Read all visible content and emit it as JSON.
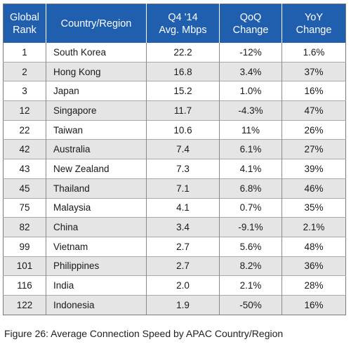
{
  "chart_data": {
    "type": "table",
    "columns": [
      [
        "Global",
        "Rank"
      ],
      [
        "Country/Region"
      ],
      [
        "Q4 '14",
        "Avg. Mbps"
      ],
      [
        "QoQ",
        "Change"
      ],
      [
        "YoY",
        "Change"
      ]
    ],
    "rows": [
      {
        "rank": "1",
        "country": "South Korea",
        "avg_mbps": "22.2",
        "qoq": "-12%",
        "yoy": "1.6%"
      },
      {
        "rank": "2",
        "country": "Hong Kong",
        "avg_mbps": "16.8",
        "qoq": "3.4%",
        "yoy": "37%"
      },
      {
        "rank": "3",
        "country": "Japan",
        "avg_mbps": "15.2",
        "qoq": "1.0%",
        "yoy": "16%"
      },
      {
        "rank": "12",
        "country": "Singapore",
        "avg_mbps": "11.7",
        "qoq": "-4.3%",
        "yoy": "47%"
      },
      {
        "rank": "22",
        "country": "Taiwan",
        "avg_mbps": "10.6",
        "qoq": "11%",
        "yoy": "26%"
      },
      {
        "rank": "42",
        "country": "Australia",
        "avg_mbps": "7.4",
        "qoq": "6.1%",
        "yoy": "27%"
      },
      {
        "rank": "43",
        "country": "New Zealand",
        "avg_mbps": "7.3",
        "qoq": "4.1%",
        "yoy": "39%"
      },
      {
        "rank": "45",
        "country": "Thailand",
        "avg_mbps": "7.1",
        "qoq": "6.8%",
        "yoy": "46%"
      },
      {
        "rank": "75",
        "country": "Malaysia",
        "avg_mbps": "4.1",
        "qoq": "0.7%",
        "yoy": "35%"
      },
      {
        "rank": "82",
        "country": "China",
        "avg_mbps": "3.4",
        "qoq": "-9.1%",
        "yoy": "2.1%"
      },
      {
        "rank": "99",
        "country": "Vietnam",
        "avg_mbps": "2.7",
        "qoq": "5.6%",
        "yoy": "48%"
      },
      {
        "rank": "101",
        "country": "Philippines",
        "avg_mbps": "2.7",
        "qoq": "8.2%",
        "yoy": "36%"
      },
      {
        "rank": "116",
        "country": "India",
        "avg_mbps": "2.0",
        "qoq": "2.1%",
        "yoy": "28%"
      },
      {
        "rank": "122",
        "country": "Indonesia",
        "avg_mbps": "1.9",
        "qoq": "-50%",
        "yoy": "16%"
      }
    ]
  },
  "caption": "Figure 26: Average Connection Speed by APAC Country/Region",
  "colors": {
    "header_bg": "#1f5fae",
    "header_text": "#ffffff",
    "alt_row_bg": "#e5e5e5"
  }
}
